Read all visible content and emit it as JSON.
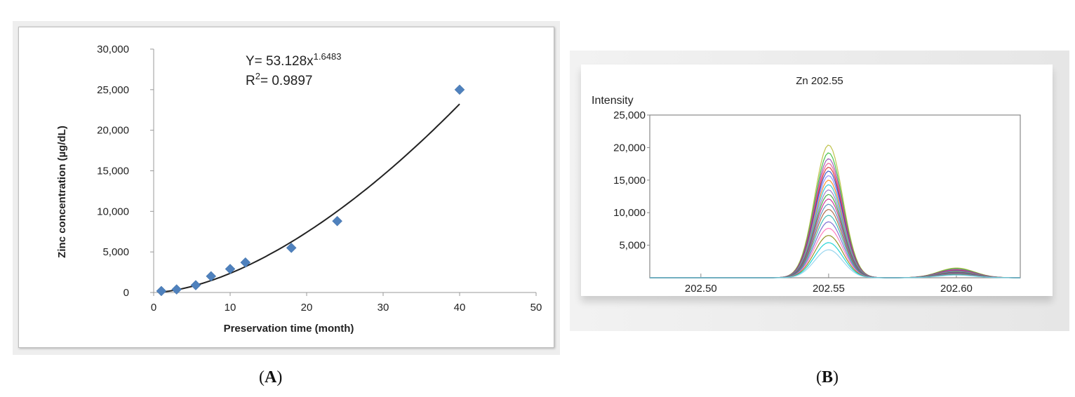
{
  "captions": {
    "a": "A",
    "b": "B"
  },
  "chart_data": [
    {
      "type": "scatter",
      "panel": "A",
      "title": "",
      "xlabel": "Preservation time (month)",
      "ylabel": "Zinc concentration  (µg/dL)",
      "xlim": [
        0,
        50
      ],
      "ylim": [
        0,
        30000
      ],
      "x_ticks": [
        "0",
        "10",
        "20",
        "30",
        "40",
        "50"
      ],
      "y_ticks": [
        "0",
        "5,000",
        "10,000",
        "15,000",
        "20,000",
        "25,000",
        "30,000"
      ],
      "x_tick_values": [
        0,
        10,
        20,
        30,
        40,
        50
      ],
      "y_tick_values": [
        0,
        5000,
        10000,
        15000,
        20000,
        25000,
        30000
      ],
      "series": [
        {
          "marker": "diamond",
          "color": "#4f81bd",
          "x": [
            1,
            3,
            5.5,
            7.5,
            10,
            12,
            18,
            24,
            40
          ],
          "y": [
            180,
            380,
            900,
            2000,
            2900,
            3700,
            5500,
            8800,
            25000
          ]
        }
      ],
      "fit": {
        "type": "power",
        "a": 53.128,
        "b": 1.6483,
        "x_range": [
          1,
          40
        ],
        "color": "#222222"
      },
      "annotation": {
        "equation_prefix": "Y= 53.128x",
        "equation_exponent": "1.6483",
        "r2_prefix": "R",
        "r2_sup": "2",
        "r2_value": "= 0.9897"
      },
      "grid": false
    },
    {
      "type": "line",
      "panel": "B",
      "title": "Zn 202.55",
      "ylabel": "Intensity",
      "xlabel": "",
      "xlim": [
        202.48,
        202.625
      ],
      "ylim": [
        0,
        25000
      ],
      "x_ticks": [
        "202.50",
        "202.55",
        "202.60"
      ],
      "x_tick_values": [
        202.5,
        202.55,
        202.6
      ],
      "y_ticks": [
        "5,000",
        "10,000",
        "15,000",
        "20,000",
        "25,000"
      ],
      "y_tick_values": [
        5000,
        10000,
        15000,
        20000,
        25000
      ],
      "peaks": [
        {
          "center": 202.55,
          "width": 0.0055
        },
        {
          "center": 202.6,
          "width": 0.007
        }
      ],
      "series_colors": [
        "#b5b92e",
        "#2eb82e",
        "#8e44ad",
        "#e74c8a",
        "#d62728",
        "#1f3fbf",
        "#7f7fff",
        "#ff7f0e",
        "#17becf",
        "#9467bd",
        "#2ca02c",
        "#c71585",
        "#4682b4",
        "#a0522d",
        "#20b2aa",
        "#6a5acd",
        "#ff69b4",
        "#808000",
        "#00ced1",
        "#87ceeb"
      ],
      "series_peak_heights": [
        20400,
        19200,
        18300,
        17600,
        17000,
        16400,
        15700,
        15000,
        14300,
        13500,
        12800,
        12100,
        11300,
        10500,
        9600,
        8600,
        7600,
        6500,
        5400,
        4300
      ],
      "series_second_peak_heights": [
        1500,
        1400,
        1300,
        1200,
        1150,
        1100,
        1050,
        1000,
        950,
        900,
        850,
        800,
        750,
        700,
        650,
        600,
        550,
        500,
        450,
        400
      ],
      "grid": false
    }
  ]
}
